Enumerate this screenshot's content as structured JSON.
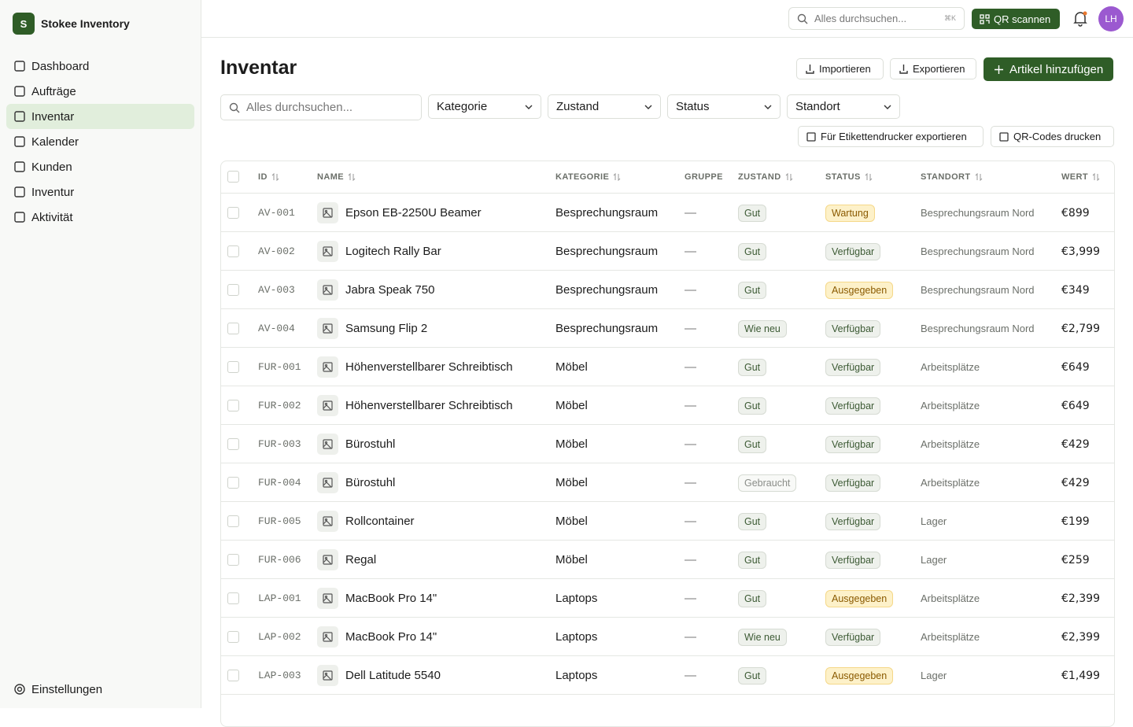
{
  "sidebar": {
    "logo": "S",
    "brand": "Stokee Inventory",
    "nav": [
      "Dashboard",
      "Aufträge",
      "Inventar",
      "Kalender",
      "Kunden",
      "Inventur",
      "Aktivität"
    ],
    "active": 2,
    "footer": "Einstellungen"
  },
  "topbar": {
    "search_placeholder": "Alles durchsuchen...",
    "shortcut": "⌘K",
    "qr_button": "QR scannen",
    "avatar": "LH"
  },
  "page": {
    "title": "Inventar",
    "actions": [
      "Importieren",
      "Exportieren",
      "Artikel hinzufügen"
    ],
    "search_placeholder": "Alles durchsuchen...",
    "filters": [
      "Kategorie",
      "Zustand",
      "Status",
      "Standort"
    ],
    "secondary_actions": [
      "Für Etikettendrucker exportieren",
      "QR-Codes drucken"
    ]
  },
  "table": {
    "columns": [
      "ID",
      "NAME",
      "KATEGORIE",
      "GRUPPE",
      "ZUSTAND",
      "STATUS",
      "STANDORT",
      "WERT"
    ],
    "highlight_statuses": [
      "Wartung",
      "Ausgegeben"
    ],
    "muted_conditions": [
      "Gebraucht"
    ],
    "rows": [
      [
        "AV-001",
        "Epson EB-2250U Beamer",
        "Besprechungsraum",
        "—",
        "Gut",
        "Wartung",
        "Besprechungsraum Nord",
        "€899"
      ],
      [
        "AV-002",
        "Logitech Rally Bar",
        "Besprechungsraum",
        "—",
        "Gut",
        "Verfügbar",
        "Besprechungsraum Nord",
        "€3,999"
      ],
      [
        "AV-003",
        "Jabra Speak 750",
        "Besprechungsraum",
        "—",
        "Gut",
        "Ausgegeben",
        "Besprechungsraum Nord",
        "€349"
      ],
      [
        "AV-004",
        "Samsung Flip 2",
        "Besprechungsraum",
        "—",
        "Wie neu",
        "Verfügbar",
        "Besprechungsraum Nord",
        "€2,799"
      ],
      [
        "FUR-001",
        "Höhenverstellbarer Schreibtisch",
        "Möbel",
        "—",
        "Gut",
        "Verfügbar",
        "Arbeitsplätze",
        "€649"
      ],
      [
        "FUR-002",
        "Höhenverstellbarer Schreibtisch",
        "Möbel",
        "—",
        "Gut",
        "Verfügbar",
        "Arbeitsplätze",
        "€649"
      ],
      [
        "FUR-003",
        "Bürostuhl",
        "Möbel",
        "—",
        "Gut",
        "Verfügbar",
        "Arbeitsplätze",
        "€429"
      ],
      [
        "FUR-004",
        "Bürostuhl",
        "Möbel",
        "—",
        "Gebraucht",
        "Verfügbar",
        "Arbeitsplätze",
        "€429"
      ],
      [
        "FUR-005",
        "Rollcontainer",
        "Möbel",
        "—",
        "Gut",
        "Verfügbar",
        "Lager",
        "€199"
      ],
      [
        "FUR-006",
        "Regal",
        "Möbel",
        "—",
        "Gut",
        "Verfügbar",
        "Lager",
        "€259"
      ],
      [
        "LAP-001",
        "MacBook Pro 14\"",
        "Laptops",
        "—",
        "Gut",
        "Ausgegeben",
        "Arbeitsplätze",
        "€2,399"
      ],
      [
        "LAP-002",
        "MacBook Pro 14\"",
        "Laptops",
        "—",
        "Wie neu",
        "Verfügbar",
        "Arbeitsplätze",
        "€2,399"
      ],
      [
        "LAP-003",
        "Dell Latitude 5540",
        "Laptops",
        "—",
        "Gut",
        "Ausgegeben",
        "Lager",
        "€1,499"
      ]
    ]
  }
}
